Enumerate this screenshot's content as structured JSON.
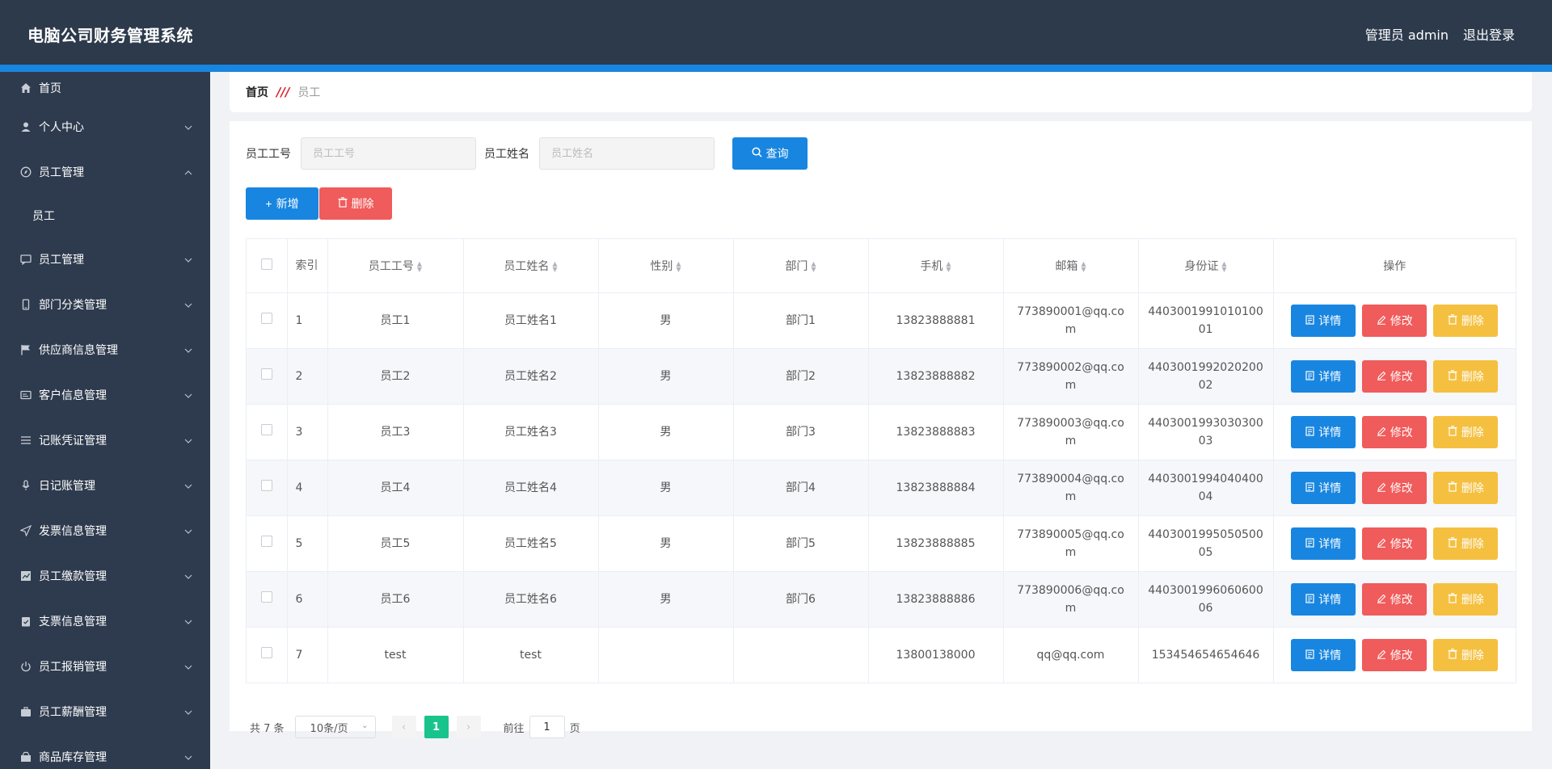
{
  "header": {
    "title": "电脑公司财务管理系统",
    "user": "管理员 admin",
    "logout": "退出登录"
  },
  "sidebar": {
    "home": "首页",
    "items": [
      {
        "label": "个人中心",
        "icon": "user-icon"
      },
      {
        "label": "员工管理",
        "icon": "compass-icon",
        "expanded": true,
        "sub": "员工"
      },
      {
        "label": "员工管理",
        "icon": "chat-icon"
      },
      {
        "label": "部门分类管理",
        "icon": "phone-icon"
      },
      {
        "label": "供应商信息管理",
        "icon": "flag-icon"
      },
      {
        "label": "客户信息管理",
        "icon": "card-icon"
      },
      {
        "label": "记账凭证管理",
        "icon": "list-icon"
      },
      {
        "label": "日记账管理",
        "icon": "mic-icon"
      },
      {
        "label": "发票信息管理",
        "icon": "send-icon"
      },
      {
        "label": "员工缴款管理",
        "icon": "chart-icon"
      },
      {
        "label": "支票信息管理",
        "icon": "clipboard-icon"
      },
      {
        "label": "员工报销管理",
        "icon": "power-icon"
      },
      {
        "label": "员工薪酬管理",
        "icon": "briefcase-icon"
      },
      {
        "label": "商品库存管理",
        "icon": "goods-icon"
      }
    ]
  },
  "breadcrumb": {
    "home": "首页",
    "separator": "///",
    "current": "员工"
  },
  "search": {
    "id_label": "员工工号",
    "id_placeholder": "员工工号",
    "name_label": "员工姓名",
    "name_placeholder": "员工姓名",
    "query": "查询"
  },
  "actions": {
    "add": "新增",
    "delete": "删除"
  },
  "table": {
    "columns": [
      "索引",
      "员工工号",
      "员工姓名",
      "性别",
      "部门",
      "手机",
      "邮箱",
      "身份证",
      "操作"
    ],
    "ops": {
      "detail": "详情",
      "edit": "修改",
      "delete": "删除"
    },
    "rows": [
      {
        "idx": "1",
        "id": "员工1",
        "name": "员工姓名1",
        "gender": "男",
        "dept": "部门1",
        "phone": "13823888881",
        "email": "773890001@qq.com",
        "idcard": "440300199101010001"
      },
      {
        "idx": "2",
        "id": "员工2",
        "name": "员工姓名2",
        "gender": "男",
        "dept": "部门2",
        "phone": "13823888882",
        "email": "773890002@qq.com",
        "idcard": "440300199202020002"
      },
      {
        "idx": "3",
        "id": "员工3",
        "name": "员工姓名3",
        "gender": "男",
        "dept": "部门3",
        "phone": "13823888883",
        "email": "773890003@qq.com",
        "idcard": "440300199303030003"
      },
      {
        "idx": "4",
        "id": "员工4",
        "name": "员工姓名4",
        "gender": "男",
        "dept": "部门4",
        "phone": "13823888884",
        "email": "773890004@qq.com",
        "idcard": "440300199404040004"
      },
      {
        "idx": "5",
        "id": "员工5",
        "name": "员工姓名5",
        "gender": "男",
        "dept": "部门5",
        "phone": "13823888885",
        "email": "773890005@qq.com",
        "idcard": "440300199505050005"
      },
      {
        "idx": "6",
        "id": "员工6",
        "name": "员工姓名6",
        "gender": "男",
        "dept": "部门6",
        "phone": "13823888886",
        "email": "773890006@qq.com",
        "idcard": "440300199606060006"
      },
      {
        "idx": "7",
        "id": "test",
        "name": "test",
        "gender": "",
        "dept": "",
        "phone": "13800138000",
        "email": "qq@qq.com",
        "idcard": "153454654654646"
      }
    ]
  },
  "pagination": {
    "total": "共 7 条",
    "page_size": "10条/页",
    "current": "1",
    "goto": "前往",
    "goto_value": "1",
    "page_suffix": "页"
  }
}
